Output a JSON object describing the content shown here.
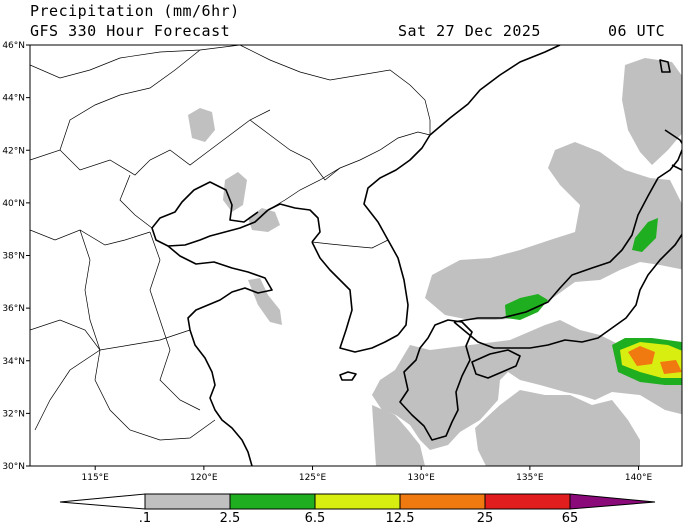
{
  "header": {
    "title": "Precipitation (mm/6hr)",
    "subtitle": "GFS 330 Hour Forecast",
    "valid_date": "Sat 27 Dec 2025",
    "valid_time": "06 UTC"
  },
  "map": {
    "lon_range": [
      112,
      142
    ],
    "lat_range": [
      30,
      46
    ],
    "lat_ticks": [
      "46°N",
      "44°N",
      "42°N",
      "40°N",
      "38°N",
      "36°N",
      "34°N",
      "32°N",
      "30°N"
    ],
    "lon_ticks": [
      "115°E",
      "120°E",
      "125°E",
      "130°E",
      "135°E",
      "140°E"
    ]
  },
  "colorbar": {
    "labels": [
      ".1",
      "2.5",
      "6.5",
      "12.5",
      "25",
      "65"
    ],
    "colors": [
      "#c0c0c0",
      "#1fae1f",
      "#d8ee10",
      "#f07a10",
      "#e21d1d",
      "#8b0a7a"
    ]
  }
}
